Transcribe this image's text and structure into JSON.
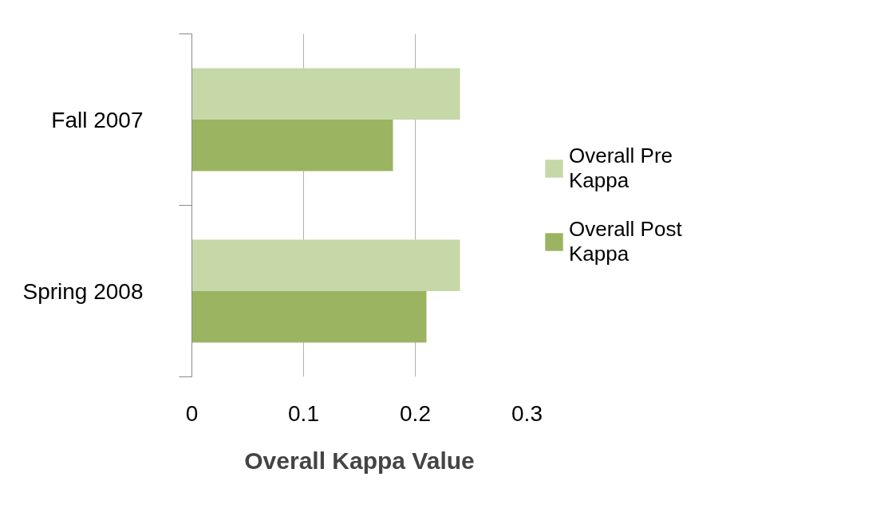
{
  "chart_data": {
    "type": "bar",
    "orientation": "horizontal",
    "xlabel": "Overall Kappa Value",
    "categories": [
      "Fall 2007",
      "Spring 2008"
    ],
    "series": [
      {
        "name": "Overall Pre Kappa",
        "color": "#c6d7a8",
        "values": [
          0.24,
          0.24
        ]
      },
      {
        "name": "Overall Post Kappa",
        "color": "#9bb461",
        "values": [
          0.18,
          0.21
        ]
      }
    ],
    "xlim": [
      0,
      0.3
    ],
    "xticks": [
      0,
      0.1,
      0.2,
      0.3
    ],
    "grid": "x",
    "legend": "right"
  }
}
